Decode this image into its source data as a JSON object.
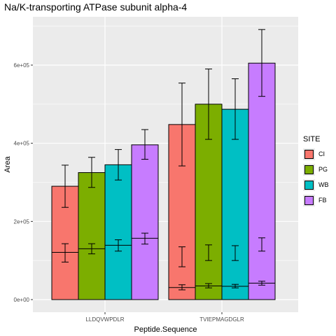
{
  "chart_data": {
    "type": "bar",
    "title": "Na/K-transporting ATPase subunit alpha-4",
    "xlabel": "Peptide.Sequence",
    "ylabel": "Area",
    "ylim": [
      0,
      700000
    ],
    "y_ticks": [
      0,
      200000,
      400000,
      600000
    ],
    "y_tick_labels": [
      "0e+00",
      "2e+05",
      "4e+05",
      "6e+05"
    ],
    "categories": [
      "LLDQVWPDLR",
      "TVIEPMAGDGLR"
    ],
    "legend_title": "SITE",
    "legend_placement": "right",
    "grid": true,
    "colors": {
      "CI": "#f8766d",
      "PG": "#7cae00",
      "WB": "#00bfc4",
      "FB": "#c77cff",
      "panel": "#ebebeb",
      "gridline": "#ffffff"
    },
    "series": [
      {
        "name": "CI",
        "values": [
          290000,
          448000
        ],
        "err_low": [
          236000,
          342000
        ],
        "err_high": [
          344000,
          554000
        ],
        "inner_values": [
          121000,
          31000
        ],
        "inner_err_low": [
          96000,
          25000
        ],
        "inner_err_high": [
          143000,
          38000
        ],
        "inner_err2_low": [
          null,
          84000
        ],
        "inner_err2_high": [
          null,
          135000
        ]
      },
      {
        "name": "PG",
        "values": [
          325000,
          500000
        ],
        "err_low": [
          287000,
          410000
        ],
        "err_high": [
          364000,
          590000
        ],
        "inner_values": [
          130000,
          35000
        ],
        "inner_err_low": [
          117000,
          30000
        ],
        "inner_err_high": [
          143000,
          41000
        ],
        "inner_err2_low": [
          null,
          100000
        ],
        "inner_err2_high": [
          null,
          140000
        ]
      },
      {
        "name": "WB",
        "values": [
          345000,
          487000
        ],
        "err_low": [
          306000,
          410000
        ],
        "err_high": [
          384000,
          565000
        ],
        "inner_values": [
          139000,
          34000
        ],
        "inner_err_low": [
          124000,
          30000
        ],
        "inner_err_high": [
          153000,
          39000
        ],
        "inner_err2_low": [
          null,
          100000
        ],
        "inner_err2_high": [
          null,
          138000
        ]
      },
      {
        "name": "FB",
        "values": [
          396000,
          605000
        ],
        "err_low": [
          359000,
          520000
        ],
        "err_high": [
          435000,
          691000
        ],
        "inner_values": [
          157000,
          42000
        ],
        "inner_err_low": [
          142000,
          37000
        ],
        "inner_err_high": [
          170000,
          47000
        ],
        "inner_err2_low": [
          null,
          124000
        ],
        "inner_err2_high": [
          null,
          158000
        ]
      }
    ]
  }
}
